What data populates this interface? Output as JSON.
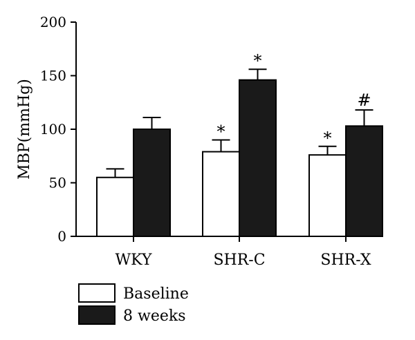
{
  "chart_data": {
    "type": "bar",
    "title": "",
    "xlabel": "",
    "ylabel": "MBP(mmHg)",
    "ylim": [
      0,
      200
    ],
    "yticks": [
      0,
      50,
      100,
      150,
      200
    ],
    "categories": [
      "WKY",
      "SHR-C",
      "SHR-X"
    ],
    "series": [
      {
        "name": "Baseline",
        "color": "#ffffff",
        "values": [
          55,
          79,
          76
        ],
        "errors": [
          8,
          11,
          8
        ],
        "markers": [
          "",
          "*",
          "*"
        ]
      },
      {
        "name": "8 weeks",
        "color": "#1a1a1a",
        "values": [
          100,
          146,
          103
        ],
        "errors": [
          11,
          10,
          15
        ],
        "markers": [
          "",
          "*",
          "#"
        ]
      }
    ],
    "grid": false,
    "legend_position": "bottom-left"
  }
}
